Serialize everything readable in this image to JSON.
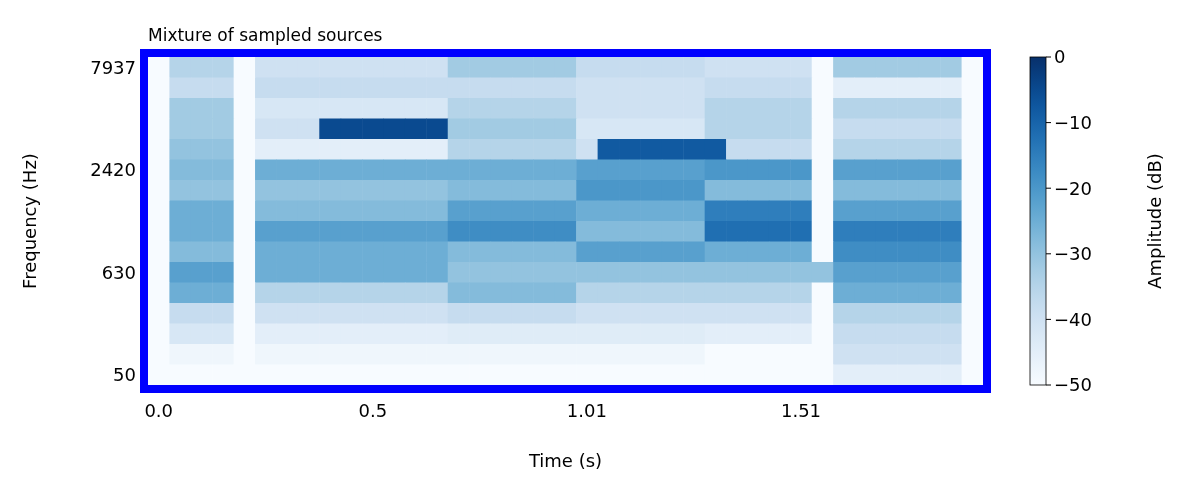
{
  "chart_data": {
    "type": "heatmap",
    "title": "Mixture of sampled sources",
    "xlabel": "Time (s)",
    "ylabel": "Frequency (Hz)",
    "clabel": "Amplitude (dB)",
    "categories": [
      "0.0",
      null,
      null,
      null,
      null,
      null,
      null,
      null,
      null,
      null,
      "0.5",
      null,
      null,
      null,
      null,
      null,
      null,
      null,
      null,
      null,
      "1.01",
      null,
      null,
      null,
      null,
      null,
      null,
      null,
      null,
      null,
      "1.51",
      null,
      null,
      null,
      null,
      null,
      null,
      null,
      null
    ],
    "y_categories": [
      "7937",
      null,
      null,
      null,
      null,
      "2420",
      null,
      null,
      null,
      null,
      "630",
      null,
      null,
      null,
      null,
      "50"
    ],
    "clim": [
      -50,
      0
    ],
    "cticks": [
      {
        "value": -50,
        "label": "−50"
      },
      {
        "value": -40,
        "label": "−40"
      },
      {
        "value": -30,
        "label": "−30"
      },
      {
        "value": -20,
        "label": "−20"
      },
      {
        "value": -10,
        "label": "−10"
      },
      0
    ],
    "cells": [
      [
        -50,
        -35,
        -35,
        -35,
        -50,
        -40,
        -40,
        -40,
        -40,
        -40,
        -40,
        -40,
        -40,
        -40,
        -32,
        -32,
        -32,
        -32,
        -32,
        -32,
        -38,
        -38,
        -38,
        -38,
        -38,
        -38,
        -40,
        -40,
        -40,
        -40,
        -40,
        -50,
        -32,
        -32,
        -32,
        -32,
        -32,
        -32,
        -50
      ],
      [
        -50,
        -38,
        -38,
        -38,
        -50,
        -38,
        -38,
        -38,
        -38,
        -38,
        -38,
        -38,
        -38,
        -38,
        -38,
        -38,
        -38,
        -38,
        -38,
        -38,
        -40,
        -40,
        -40,
        -40,
        -40,
        -40,
        -38,
        -38,
        -38,
        -38,
        -38,
        -50,
        -45,
        -45,
        -45,
        -45,
        -45,
        -45,
        -50
      ],
      [
        -50,
        -32,
        -32,
        -32,
        -50,
        -42,
        -42,
        -42,
        -42,
        -42,
        -42,
        -42,
        -42,
        -42,
        -35,
        -35,
        -35,
        -35,
        -35,
        -35,
        -40,
        -40,
        -40,
        -40,
        -40,
        -40,
        -35,
        -35,
        -35,
        -35,
        -35,
        -50,
        -35,
        -35,
        -35,
        -35,
        -35,
        -35,
        -50
      ],
      [
        -50,
        -32,
        -32,
        -32,
        -50,
        -40,
        -40,
        -40,
        -5,
        -5,
        -5,
        -5,
        -5,
        -5,
        -32,
        -32,
        -32,
        -32,
        -32,
        -32,
        -42,
        -42,
        -42,
        -42,
        -42,
        -42,
        -35,
        -35,
        -35,
        -35,
        -35,
        -50,
        -38,
        -38,
        -38,
        -38,
        -38,
        -38,
        -50
      ],
      [
        -50,
        -30,
        -30,
        -30,
        -50,
        -45,
        -45,
        -45,
        -45,
        -45,
        -45,
        -45,
        -45,
        -45,
        -35,
        -35,
        -35,
        -35,
        -35,
        -35,
        -40,
        -8,
        -8,
        -8,
        -8,
        -8,
        -8,
        -38,
        -38,
        -38,
        -38,
        -50,
        -35,
        -35,
        -35,
        -35,
        -35,
        -35,
        -50
      ],
      [
        -50,
        -28,
        -28,
        -28,
        -50,
        -25,
        -25,
        -25,
        -25,
        -25,
        -25,
        -25,
        -25,
        -25,
        -25,
        -25,
        -25,
        -25,
        -25,
        -25,
        -22,
        -22,
        -22,
        -22,
        -22,
        -22,
        -20,
        -20,
        -20,
        -20,
        -20,
        -50,
        -22,
        -22,
        -22,
        -22,
        -22,
        -22,
        -50
      ],
      [
        -50,
        -30,
        -30,
        -30,
        -50,
        -30,
        -30,
        -30,
        -30,
        -30,
        -30,
        -30,
        -30,
        -30,
        -28,
        -28,
        -28,
        -28,
        -28,
        -28,
        -20,
        -20,
        -20,
        -20,
        -20,
        -20,
        -28,
        -28,
        -28,
        -28,
        -28,
        -50,
        -28,
        -28,
        -28,
        -28,
        -28,
        -28,
        -50
      ],
      [
        -50,
        -25,
        -25,
        -25,
        -50,
        -28,
        -28,
        -28,
        -28,
        -28,
        -28,
        -28,
        -28,
        -28,
        -22,
        -22,
        -22,
        -22,
        -22,
        -22,
        -25,
        -25,
        -25,
        -25,
        -25,
        -25,
        -15,
        -15,
        -15,
        -15,
        -15,
        -50,
        -22,
        -22,
        -22,
        -22,
        -22,
        -22,
        -50
      ],
      [
        -50,
        -25,
        -25,
        -25,
        -50,
        -22,
        -22,
        -22,
        -22,
        -22,
        -22,
        -22,
        -22,
        -22,
        -18,
        -18,
        -18,
        -18,
        -18,
        -18,
        -28,
        -28,
        -28,
        -28,
        -28,
        -28,
        -12,
        -12,
        -12,
        -12,
        -12,
        -50,
        -15,
        -15,
        -15,
        -15,
        -15,
        -15,
        -50
      ],
      [
        -50,
        -28,
        -28,
        -28,
        -50,
        -25,
        -25,
        -25,
        -25,
        -25,
        -25,
        -25,
        -25,
        -25,
        -28,
        -28,
        -28,
        -28,
        -28,
        -28,
        -22,
        -22,
        -22,
        -22,
        -22,
        -22,
        -25,
        -25,
        -25,
        -25,
        -25,
        -50,
        -18,
        -18,
        -18,
        -18,
        -18,
        -18,
        -50
      ],
      [
        -50,
        -22,
        -22,
        -22,
        -50,
        -25,
        -25,
        -25,
        -25,
        -25,
        -25,
        -25,
        -25,
        -25,
        -30,
        -30,
        -30,
        -30,
        -30,
        -30,
        -30,
        -30,
        -30,
        -30,
        -30,
        -30,
        -30,
        -30,
        -30,
        -30,
        -30,
        -30,
        -22,
        -22,
        -22,
        -22,
        -22,
        -22,
        -50
      ],
      [
        -50,
        -25,
        -25,
        -25,
        -50,
        -35,
        -35,
        -35,
        -35,
        -35,
        -35,
        -35,
        -35,
        -35,
        -28,
        -28,
        -28,
        -28,
        -28,
        -28,
        -35,
        -35,
        -35,
        -35,
        -35,
        -35,
        -35,
        -35,
        -35,
        -35,
        -35,
        -50,
        -25,
        -25,
        -25,
        -25,
        -25,
        -25,
        -50
      ],
      [
        -50,
        -38,
        -38,
        -38,
        -50,
        -40,
        -40,
        -40,
        -40,
        -40,
        -40,
        -40,
        -40,
        -40,
        -38,
        -38,
        -38,
        -38,
        -38,
        -38,
        -40,
        -40,
        -40,
        -40,
        -40,
        -40,
        -40,
        -40,
        -40,
        -40,
        -40,
        -50,
        -35,
        -35,
        -35,
        -35,
        -35,
        -35,
        -50
      ],
      [
        -50,
        -42,
        -42,
        -42,
        -50,
        -45,
        -45,
        -45,
        -45,
        -45,
        -45,
        -45,
        -45,
        -45,
        -44,
        -44,
        -44,
        -44,
        -44,
        -44,
        -44,
        -44,
        -44,
        -44,
        -44,
        -44,
        -45,
        -45,
        -45,
        -45,
        -45,
        -50,
        -38,
        -38,
        -38,
        -38,
        -38,
        -38,
        -50
      ],
      [
        -50,
        -48,
        -48,
        -48,
        -50,
        -48,
        -48,
        -48,
        -48,
        -48,
        -48,
        -48,
        -48,
        -48,
        -48,
        -48,
        -48,
        -48,
        -48,
        -48,
        -48,
        -48,
        -48,
        -48,
        -48,
        -48,
        -50,
        -50,
        -50,
        -50,
        -50,
        -50,
        -40,
        -40,
        -40,
        -40,
        -40,
        -40,
        -50
      ],
      [
        -50,
        -50,
        -50,
        -50,
        -50,
        -50,
        -50,
        -50,
        -50,
        -50,
        -50,
        -50,
        -50,
        -50,
        -50,
        -50,
        -50,
        -50,
        -50,
        -50,
        -50,
        -50,
        -50,
        -50,
        -50,
        -50,
        -50,
        -50,
        -50,
        -50,
        -50,
        -50,
        -45,
        -45,
        -45,
        -45,
        -45,
        -45,
        -50
      ]
    ]
  }
}
